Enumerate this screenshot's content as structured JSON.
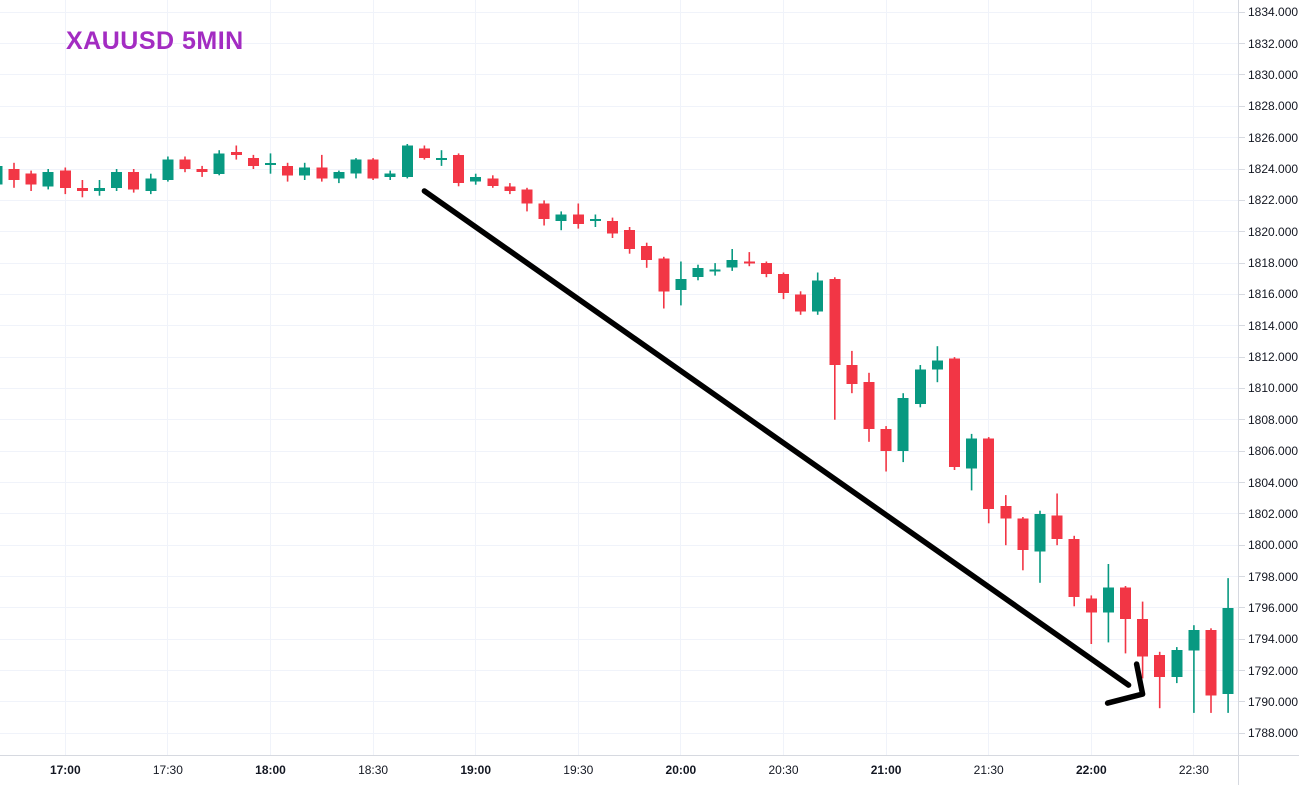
{
  "title": {
    "text": "XAUUSD 5MIN",
    "color": "#a32cc2"
  },
  "chart_data": {
    "type": "candlestick",
    "title": "XAUUSD 5MIN",
    "symbol": "XAUUSD",
    "timeframe": "5 minutes",
    "grid": true,
    "legend_position": "none",
    "colors": {
      "up": "#089981",
      "down": "#f23645",
      "grid": "#f0f3fa",
      "axis_border": "#d6d9e0",
      "axis_text": "#131722",
      "arrow": "#000000"
    },
    "price_axis": {
      "max": 1834,
      "min": 1788,
      "step": 2,
      "decimals": 3,
      "side": "right"
    },
    "ylim": [
      1786.8,
      1834.8
    ],
    "x_labels": [
      {
        "label": "17:00",
        "emphasis": true
      },
      {
        "label": "17:30",
        "emphasis": false
      },
      {
        "label": "18:00",
        "emphasis": true
      },
      {
        "label": "18:30",
        "emphasis": false
      },
      {
        "label": "19:00",
        "emphasis": true
      },
      {
        "label": "19:30",
        "emphasis": false
      },
      {
        "label": "20:00",
        "emphasis": true
      },
      {
        "label": "20:30",
        "emphasis": false
      },
      {
        "label": "21:00",
        "emphasis": true
      },
      {
        "label": "21:30",
        "emphasis": false
      },
      {
        "label": "22:00",
        "emphasis": true
      },
      {
        "label": "22:30",
        "emphasis": false
      }
    ],
    "candles": [
      {
        "t": "16:40",
        "o": 1823.0,
        "h": 1824.4,
        "l": 1822.8,
        "c": 1824.2
      },
      {
        "t": "16:45",
        "o": 1824.0,
        "h": 1824.4,
        "l": 1822.8,
        "c": 1823.3
      },
      {
        "t": "16:50",
        "o": 1823.7,
        "h": 1823.9,
        "l": 1822.6,
        "c": 1823.0
      },
      {
        "t": "16:55",
        "o": 1822.9,
        "h": 1824.0,
        "l": 1822.7,
        "c": 1823.8
      },
      {
        "t": "17:00",
        "o": 1823.9,
        "h": 1824.1,
        "l": 1822.4,
        "c": 1822.8
      },
      {
        "t": "17:05",
        "o": 1822.8,
        "h": 1823.3,
        "l": 1822.2,
        "c": 1822.6
      },
      {
        "t": "17:10",
        "o": 1822.6,
        "h": 1823.3,
        "l": 1822.3,
        "c": 1822.8
      },
      {
        "t": "17:15",
        "o": 1822.8,
        "h": 1824.0,
        "l": 1822.6,
        "c": 1823.8
      },
      {
        "t": "17:20",
        "o": 1823.8,
        "h": 1824.0,
        "l": 1822.5,
        "c": 1822.7
      },
      {
        "t": "17:25",
        "o": 1822.6,
        "h": 1823.7,
        "l": 1822.4,
        "c": 1823.4
      },
      {
        "t": "17:30",
        "o": 1823.3,
        "h": 1824.8,
        "l": 1823.2,
        "c": 1824.6
      },
      {
        "t": "17:35",
        "o": 1824.6,
        "h": 1824.8,
        "l": 1823.8,
        "c": 1824.0
      },
      {
        "t": "17:40",
        "o": 1824.0,
        "h": 1824.2,
        "l": 1823.5,
        "c": 1823.8
      },
      {
        "t": "17:45",
        "o": 1823.7,
        "h": 1825.2,
        "l": 1823.6,
        "c": 1825.0
      },
      {
        "t": "17:50",
        "o": 1825.1,
        "h": 1825.5,
        "l": 1824.6,
        "c": 1824.9
      },
      {
        "t": "17:55",
        "o": 1824.7,
        "h": 1824.9,
        "l": 1824.0,
        "c": 1824.2
      },
      {
        "t": "18:00",
        "o": 1824.3,
        "h": 1825.0,
        "l": 1823.7,
        "c": 1824.4
      },
      {
        "t": "18:05",
        "o": 1824.2,
        "h": 1824.4,
        "l": 1823.2,
        "c": 1823.6
      },
      {
        "t": "18:10",
        "o": 1823.6,
        "h": 1824.4,
        "l": 1823.3,
        "c": 1824.1
      },
      {
        "t": "18:15",
        "o": 1824.1,
        "h": 1824.9,
        "l": 1823.2,
        "c": 1823.4
      },
      {
        "t": "18:20",
        "o": 1823.4,
        "h": 1823.9,
        "l": 1823.1,
        "c": 1823.8
      },
      {
        "t": "18:25",
        "o": 1823.7,
        "h": 1824.7,
        "l": 1823.4,
        "c": 1824.6
      },
      {
        "t": "18:30",
        "o": 1824.6,
        "h": 1824.7,
        "l": 1823.3,
        "c": 1823.4
      },
      {
        "t": "18:35",
        "o": 1823.5,
        "h": 1823.9,
        "l": 1823.3,
        "c": 1823.7
      },
      {
        "t": "18:40",
        "o": 1823.5,
        "h": 1825.6,
        "l": 1823.4,
        "c": 1825.5
      },
      {
        "t": "18:45",
        "o": 1825.3,
        "h": 1825.5,
        "l": 1824.6,
        "c": 1824.7
      },
      {
        "t": "18:50",
        "o": 1824.6,
        "h": 1825.2,
        "l": 1824.2,
        "c": 1824.7
      },
      {
        "t": "18:55",
        "o": 1824.9,
        "h": 1825.0,
        "l": 1822.9,
        "c": 1823.1
      },
      {
        "t": "19:00",
        "o": 1823.2,
        "h": 1823.7,
        "l": 1823.0,
        "c": 1823.5
      },
      {
        "t": "19:05",
        "o": 1823.4,
        "h": 1823.6,
        "l": 1822.8,
        "c": 1822.9
      },
      {
        "t": "19:10",
        "o": 1822.9,
        "h": 1823.1,
        "l": 1822.4,
        "c": 1822.6
      },
      {
        "t": "19:15",
        "o": 1822.7,
        "h": 1822.8,
        "l": 1821.3,
        "c": 1821.8
      },
      {
        "t": "19:20",
        "o": 1821.8,
        "h": 1822.0,
        "l": 1820.4,
        "c": 1820.8
      },
      {
        "t": "19:25",
        "o": 1820.7,
        "h": 1821.3,
        "l": 1820.1,
        "c": 1821.1
      },
      {
        "t": "19:30",
        "o": 1821.1,
        "h": 1821.8,
        "l": 1820.2,
        "c": 1820.5
      },
      {
        "t": "19:35",
        "o": 1820.7,
        "h": 1821.1,
        "l": 1820.3,
        "c": 1820.8
      },
      {
        "t": "19:40",
        "o": 1820.7,
        "h": 1820.9,
        "l": 1819.6,
        "c": 1819.9
      },
      {
        "t": "19:45",
        "o": 1820.1,
        "h": 1820.3,
        "l": 1818.6,
        "c": 1818.9
      },
      {
        "t": "19:50",
        "o": 1819.1,
        "h": 1819.3,
        "l": 1817.7,
        "c": 1818.2
      },
      {
        "t": "19:55",
        "o": 1818.3,
        "h": 1818.4,
        "l": 1815.1,
        "c": 1816.2
      },
      {
        "t": "20:00",
        "o": 1816.3,
        "h": 1818.1,
        "l": 1815.3,
        "c": 1817.0
      },
      {
        "t": "20:05",
        "o": 1817.1,
        "h": 1817.9,
        "l": 1816.9,
        "c": 1817.7
      },
      {
        "t": "20:10",
        "o": 1817.5,
        "h": 1818.0,
        "l": 1817.2,
        "c": 1817.6
      },
      {
        "t": "20:15",
        "o": 1817.7,
        "h": 1818.9,
        "l": 1817.5,
        "c": 1818.2
      },
      {
        "t": "20:20",
        "o": 1818.1,
        "h": 1818.7,
        "l": 1817.8,
        "c": 1818.0
      },
      {
        "t": "20:25",
        "o": 1818.0,
        "h": 1818.1,
        "l": 1817.1,
        "c": 1817.3
      },
      {
        "t": "20:30",
        "o": 1817.3,
        "h": 1817.4,
        "l": 1815.7,
        "c": 1816.1
      },
      {
        "t": "20:35",
        "o": 1816.0,
        "h": 1816.2,
        "l": 1814.7,
        "c": 1814.9
      },
      {
        "t": "20:40",
        "o": 1814.9,
        "h": 1817.4,
        "l": 1814.7,
        "c": 1816.9
      },
      {
        "t": "20:45",
        "o": 1817.0,
        "h": 1817.1,
        "l": 1808.0,
        "c": 1811.5
      },
      {
        "t": "20:50",
        "o": 1811.5,
        "h": 1812.4,
        "l": 1809.7,
        "c": 1810.3
      },
      {
        "t": "20:55",
        "o": 1810.4,
        "h": 1811.0,
        "l": 1806.6,
        "c": 1807.4
      },
      {
        "t": "21:00",
        "o": 1807.4,
        "h": 1807.6,
        "l": 1804.7,
        "c": 1806.0
      },
      {
        "t": "21:05",
        "o": 1806.0,
        "h": 1809.7,
        "l": 1805.3,
        "c": 1809.4
      },
      {
        "t": "21:10",
        "o": 1809.0,
        "h": 1811.5,
        "l": 1808.8,
        "c": 1811.2
      },
      {
        "t": "21:15",
        "o": 1811.2,
        "h": 1812.7,
        "l": 1810.4,
        "c": 1811.8
      },
      {
        "t": "21:20",
        "o": 1811.9,
        "h": 1812.0,
        "l": 1804.8,
        "c": 1805.0
      },
      {
        "t": "21:25",
        "o": 1804.9,
        "h": 1807.1,
        "l": 1803.5,
        "c": 1806.8
      },
      {
        "t": "21:30",
        "o": 1806.8,
        "h": 1806.9,
        "l": 1801.4,
        "c": 1802.3
      },
      {
        "t": "21:35",
        "o": 1802.5,
        "h": 1803.2,
        "l": 1800.0,
        "c": 1801.7
      },
      {
        "t": "21:40",
        "o": 1801.7,
        "h": 1801.8,
        "l": 1798.4,
        "c": 1799.7
      },
      {
        "t": "21:45",
        "o": 1799.6,
        "h": 1802.2,
        "l": 1797.6,
        "c": 1802.0
      },
      {
        "t": "21:50",
        "o": 1801.9,
        "h": 1803.3,
        "l": 1800.0,
        "c": 1800.4
      },
      {
        "t": "21:55",
        "o": 1800.4,
        "h": 1800.6,
        "l": 1796.1,
        "c": 1796.7
      },
      {
        "t": "22:00",
        "o": 1796.6,
        "h": 1796.8,
        "l": 1793.7,
        "c": 1795.7
      },
      {
        "t": "22:05",
        "o": 1795.7,
        "h": 1798.8,
        "l": 1793.8,
        "c": 1797.3
      },
      {
        "t": "22:10",
        "o": 1797.3,
        "h": 1797.4,
        "l": 1793.1,
        "c": 1795.3
      },
      {
        "t": "22:15",
        "o": 1795.3,
        "h": 1796.4,
        "l": 1791.5,
        "c": 1792.9
      },
      {
        "t": "22:20",
        "o": 1793.0,
        "h": 1793.2,
        "l": 1789.6,
        "c": 1791.6
      },
      {
        "t": "22:25",
        "o": 1791.6,
        "h": 1793.5,
        "l": 1791.2,
        "c": 1793.3
      },
      {
        "t": "22:30",
        "o": 1793.3,
        "h": 1794.9,
        "l": 1789.3,
        "c": 1794.6
      },
      {
        "t": "22:35",
        "o": 1794.6,
        "h": 1794.7,
        "l": 1789.3,
        "c": 1790.4
      },
      {
        "t": "22:40",
        "o": 1790.5,
        "h": 1797.9,
        "l": 1789.3,
        "c": 1796.0
      }
    ],
    "annotations": [
      {
        "kind": "arrow",
        "from": {
          "t": "18:45",
          "price": 1822.6
        },
        "to": {
          "t": "22:15",
          "price": 1790.5
        },
        "color": "#000000"
      }
    ]
  }
}
